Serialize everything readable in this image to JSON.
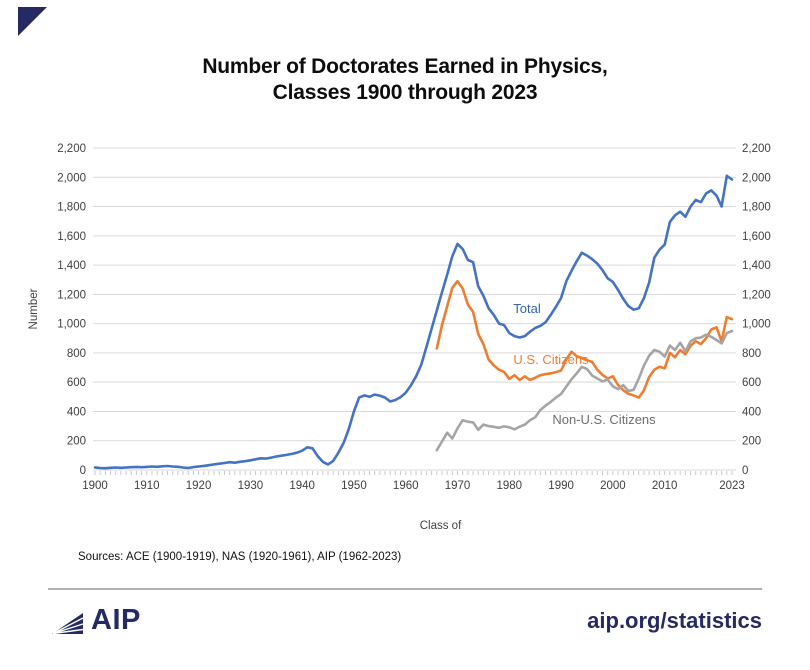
{
  "page": {
    "title_line1": "Number of Doctorates Earned in Physics,",
    "title_line2": "Classes 1900 through 2023",
    "sources": "Sources: ACE (1900-1919), NAS (1920-1961), AIP (1962-2023)",
    "footer": {
      "logo_text": "AIP",
      "url": "aip.org/statistics"
    },
    "brand_color": "#252a63"
  },
  "chart_data": {
    "type": "line",
    "title": "Number of Doctorates Earned in Physics, Classes 1900 through 2023",
    "xlabel": "Class of",
    "ylabel": "Number",
    "ylim": [
      0,
      2200
    ],
    "ytick_step": 200,
    "ytick_labels": [
      "0",
      "200",
      "400",
      "600",
      "800",
      "1,000",
      "1,200",
      "1,400",
      "1,600",
      "1,800",
      "2,000",
      "2,200"
    ],
    "xtick_years": [
      1900,
      1910,
      1920,
      1930,
      1940,
      1950,
      1960,
      1970,
      1980,
      1990,
      2000,
      2010,
      2023
    ],
    "xtick_labels": [
      "1900",
      "1910",
      "1920",
      "1930",
      "1940",
      "1950",
      "1960",
      "1970",
      "1980",
      "1990",
      "2000",
      "2010",
      "2023"
    ],
    "x_range": [
      1900,
      2023
    ],
    "grid": true,
    "legend_position": "inline-labels",
    "gridline_color": "#d9d9d9",
    "tick_color": "#c9c9c9",
    "axis_text_color": "#404040",
    "series": [
      {
        "name": "Total",
        "color": "#4472C4",
        "label": {
          "text": "Total",
          "x": 527,
          "y": 313,
          "color": "#3465ad"
        },
        "start_year": 1900,
        "values": [
          18,
          14,
          12,
          15,
          17,
          15,
          17,
          19,
          21,
          19,
          21,
          24,
          22,
          25,
          27,
          24,
          22,
          17,
          14,
          20,
          24,
          28,
          33,
          38,
          43,
          48,
          53,
          50,
          56,
          60,
          66,
          73,
          80,
          78,
          85,
          92,
          98,
          103,
          110,
          118,
          132,
          155,
          148,
          95,
          55,
          38,
          62,
          118,
          185,
          280,
          400,
          495,
          510,
          500,
          515,
          508,
          495,
          468,
          478,
          498,
          528,
          578,
          640,
          720,
          840,
          965,
          1090,
          1215,
          1335,
          1460,
          1545,
          1510,
          1435,
          1420,
          1255,
          1190,
          1105,
          1060,
          1000,
          990,
          935,
          915,
          905,
          915,
          945,
          970,
          985,
          1010,
          1060,
          1115,
          1175,
          1290,
          1360,
          1425,
          1485,
          1465,
          1440,
          1410,
          1365,
          1310,
          1285,
          1230,
          1170,
          1120,
          1095,
          1105,
          1175,
          1280,
          1450,
          1505,
          1540,
          1695,
          1740,
          1765,
          1730,
          1800,
          1845,
          1830,
          1890,
          1910,
          1875,
          1800,
          2010,
          1985
        ]
      },
      {
        "name": "U.S. Citizens",
        "color": "#ED7D31",
        "label": {
          "text": "U.S. Citizens",
          "x": 551,
          "y": 364,
          "color": "#ED7D31"
        },
        "start_year": 1966,
        "values": [
          830,
          990,
          1120,
          1245,
          1290,
          1240,
          1130,
          1080,
          930,
          860,
          755,
          715,
          685,
          670,
          622,
          648,
          615,
          640,
          615,
          630,
          648,
          655,
          660,
          668,
          680,
          755,
          808,
          778,
          765,
          750,
          738,
          685,
          650,
          625,
          640,
          580,
          545,
          520,
          510,
          495,
          545,
          635,
          685,
          705,
          695,
          800,
          770,
          820,
          790,
          850,
          880,
          860,
          900,
          960,
          975,
          880,
          1045,
          1030
        ]
      },
      {
        "name": "Non-U.S. Citizens",
        "color": "#A5A5A5",
        "label": {
          "text": "Non-U.S. Citizens",
          "x": 604,
          "y": 424,
          "color": "#6e6e6e"
        },
        "start_year": 1966,
        "values": [
          135,
          195,
          255,
          215,
          285,
          340,
          330,
          325,
          275,
          310,
          300,
          295,
          288,
          298,
          292,
          278,
          296,
          310,
          340,
          360,
          410,
          440,
          465,
          495,
          520,
          570,
          620,
          660,
          705,
          690,
          645,
          625,
          605,
          618,
          572,
          552,
          580,
          540,
          548,
          625,
          715,
          780,
          820,
          808,
          775,
          850,
          820,
          870,
          810,
          880,
          900,
          905,
          925,
          910,
          888,
          865,
          935,
          950
        ]
      }
    ]
  }
}
